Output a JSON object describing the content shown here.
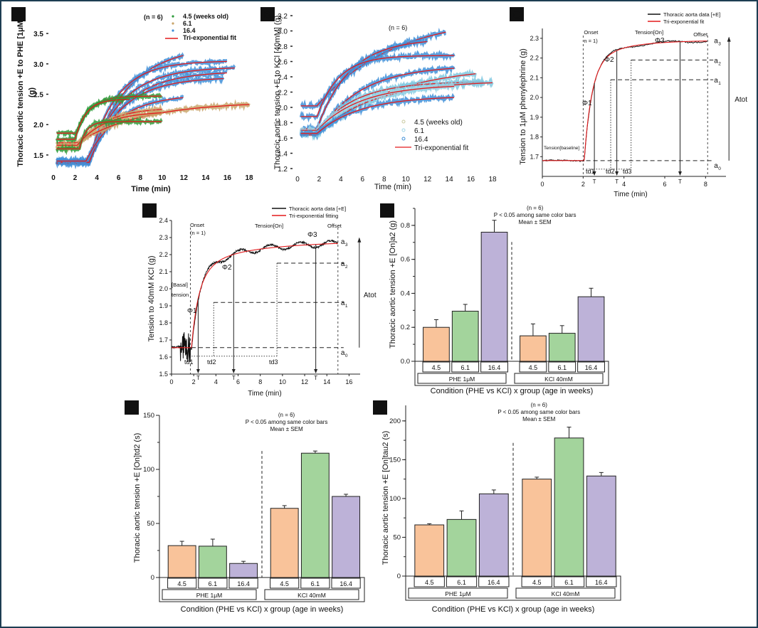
{
  "figure": {
    "border_color": "#1d3d52",
    "bar_colors": {
      "4.5": "#f9c39a",
      "6.1": "#a3d49c",
      "16.4": "#bdb2d8"
    },
    "fit_color": "#e31a1c",
    "data_line_color": "#111111"
  },
  "chart_data": [
    {
      "id": "A",
      "type": "line",
      "panel_label": "A",
      "title": "",
      "xlabel": "Time (min)",
      "ylabel": "Thoracic aortic tension +E to PHE [1μM] (g)",
      "xlim": [
        0,
        18
      ],
      "ylim": [
        1.3,
        3.7
      ],
      "xticks": [
        0,
        2,
        4,
        6,
        8,
        10,
        12,
        14,
        16,
        18
      ],
      "yticks": [
        1.5,
        2.0,
        2.5,
        3.0,
        3.5
      ],
      "annotation": "(n = 6)",
      "legend": {
        "position": "top-right",
        "entries": [
          "4.5 (weeks old)",
          "6.1",
          "16.4",
          "Tri-exponential fit"
        ]
      },
      "series": [
        {
          "group": "16.4",
          "color": "#3f8fd8",
          "t0": 3.3,
          "base": 1.37,
          "plateau": 3.3,
          "tau": 3.5,
          "tend": 12
        },
        {
          "group": "16.4",
          "color": "#3f8fd8",
          "t0": 3.3,
          "base": 1.42,
          "plateau": 3.05,
          "tau": 2.5,
          "tend": 16
        },
        {
          "group": "16.4",
          "color": "#3f8fd8",
          "t0": 3.3,
          "base": 1.4,
          "plateau": 2.95,
          "tau": 3.0,
          "tend": 16.7
        },
        {
          "group": "16.4",
          "color": "#3f8fd8",
          "t0": 3.3,
          "base": 1.36,
          "plateau": 2.88,
          "tau": 3.2,
          "tend": 16
        },
        {
          "group": "16.4",
          "color": "#3f8fd8",
          "t0": 3.3,
          "base": 1.38,
          "plateau": 2.78,
          "tau": 3.0,
          "tend": 15.7
        },
        {
          "group": "16.4",
          "color": "#3f8fd8",
          "t0": 3.0,
          "base": 1.4,
          "plateau": 2.5,
          "tau": 3.0,
          "tend": 12
        },
        {
          "group": "6.1",
          "color": "#c9a56b",
          "t0": 2.2,
          "base": 1.7,
          "plateau": 2.38,
          "tau": 6.0,
          "tend": 18
        },
        {
          "group": "6.1",
          "color": "#c9a56b",
          "t0": 2.2,
          "base": 1.62,
          "plateau": 2.28,
          "tau": 2.5,
          "tend": 10
        },
        {
          "group": "6.1",
          "color": "#c9a56b",
          "t0": 2.2,
          "base": 1.66,
          "plateau": 2.22,
          "tau": 2.5,
          "tend": 10
        },
        {
          "group": "4.5",
          "color": "#2e9b3a",
          "t0": 2.1,
          "base": 1.86,
          "plateau": 2.47,
          "tau": 1.2,
          "tend": 10
        },
        {
          "group": "4.5",
          "color": "#2e9b3a",
          "t0": 2.0,
          "base": 1.76,
          "plateau": 2.42,
          "tau": 1.0,
          "tend": 7
        },
        {
          "group": "4.5",
          "color": "#2e9b3a",
          "t0": 2.4,
          "base": 1.6,
          "plateau": 2.05,
          "tau": 0.6,
          "tend": 10
        }
      ]
    },
    {
      "id": "B",
      "type": "scatter",
      "panel_label": "B",
      "xlabel": "Time (min)",
      "ylabel": "Thoracic aortic tension +E to KCl [40mM] (g)",
      "xlim": [
        0,
        18
      ],
      "ylim": [
        1.2,
        3.2
      ],
      "xticks": [
        0,
        2,
        4,
        6,
        8,
        10,
        12,
        14,
        16,
        18
      ],
      "yticks": [
        1.2,
        1.4,
        1.6,
        1.8,
        2.0,
        2.2,
        2.4,
        2.6,
        2.8,
        3.0,
        3.2
      ],
      "annotation": "(n = 6)",
      "legend": {
        "position": "bottom-right",
        "entries": [
          "4.5 (weeks old)",
          "6.1",
          "16.4",
          "Tri-exponential fit"
        ]
      },
      "series": [
        {
          "group": "16.4",
          "color": "#3f8fd8",
          "t0": 1.8,
          "base": 2.02,
          "plateau": 3.2,
          "tau": 7.0,
          "tend": 13.7
        },
        {
          "group": "16.4",
          "color": "#3f8fd8",
          "t0": 1.8,
          "base": 1.72,
          "plateau": 2.9,
          "tau": 3.0,
          "tend": 12
        },
        {
          "group": "16.4",
          "color": "#3f8fd8",
          "t0": 1.8,
          "base": 1.88,
          "plateau": 2.68,
          "tau": 2.0,
          "tend": 14.5
        },
        {
          "group": "16.4",
          "color": "#3f8fd8",
          "t0": 1.8,
          "base": 1.65,
          "plateau": 2.55,
          "tau": 4.0,
          "tend": 14.5
        },
        {
          "group": "6.1",
          "color": "#7fc8e0",
          "t0": 1.8,
          "base": 1.66,
          "plateau": 2.55,
          "tau": 7.0,
          "tend": 16.5
        },
        {
          "group": "6.1",
          "color": "#7fc8e0",
          "t0": 1.8,
          "base": 1.68,
          "plateau": 2.34,
          "tau": 3.5,
          "tend": 17.2
        },
        {
          "group": "6.1",
          "color": "#7fc8e0",
          "t0": 1.8,
          "base": 1.64,
          "plateau": 2.35,
          "tau": 5.0,
          "tend": 18
        },
        {
          "group": "4.5",
          "color": "#9fd6e6",
          "t0": 1.8,
          "base": 1.7,
          "plateau": 2.3,
          "tau": 4.0,
          "tend": 14.5
        },
        {
          "group": "4.5",
          "color": "#3f8fd8",
          "t0": 1.8,
          "base": 1.66,
          "plateau": 2.15,
          "tau": 4.0,
          "tend": 14.5
        }
      ]
    },
    {
      "id": "C",
      "type": "line",
      "panel_label": "C",
      "xlabel": "Time (min)",
      "ylabel": "Tension to 1μM phenylephrine (g)",
      "xlim": [
        0,
        9
      ],
      "ylim": [
        1.6,
        2.35
      ],
      "xticks": [
        0,
        2,
        4,
        6,
        8
      ],
      "yticks": [
        1.7,
        1.8,
        1.9,
        2.0,
        2.1,
        2.2,
        2.3
      ],
      "legend": {
        "position": "top-right",
        "entries": [
          "Thoracic aorta data [+E]",
          "Tri-exponential fit"
        ]
      },
      "fit": {
        "t0": 2.05,
        "a0": 1.68,
        "a1": 2.09,
        "a2": 2.19,
        "a3": 2.29,
        "tau1": 0.35,
        "tau2": 0.6,
        "tau3": 1.8,
        "tend": 8.1
      },
      "markers": {
        "onset_x": 2.0,
        "offset_x": 8.1,
        "td1_x": 2.15,
        "td2_x": 3.35,
        "td3_x": 4.35,
        "T_x": [
          2.55,
          3.65,
          6.75
        ]
      },
      "annotations": [
        "Onset",
        "n = 1)",
        "Tension[On]",
        "Offset",
        "Tension[baseline]",
        "Φ1",
        "Φ2",
        "Φ3",
        "td1",
        "td2",
        "td3",
        "T",
        "T",
        "T",
        "a0",
        "a1",
        "a2",
        "a3",
        "Atot"
      ]
    },
    {
      "id": "D",
      "type": "line",
      "panel_label": "D",
      "xlabel": "Time (min)",
      "ylabel": "Tension to 40mM KCl (g)",
      "xlim": [
        0,
        17
      ],
      "ylim": [
        1.5,
        2.4
      ],
      "xticks": [
        0,
        2,
        4,
        6,
        8,
        10,
        12,
        14,
        16
      ],
      "yticks": [
        1.5,
        1.6,
        1.7,
        1.8,
        1.9,
        2.0,
        2.1,
        2.2,
        2.3,
        2.4
      ],
      "legend": {
        "position": "top-right",
        "entries": [
          "Thoracic aorta data [+E]",
          "Tri-exponential fitting"
        ]
      },
      "fit": {
        "t0": 1.8,
        "a0": 1.655,
        "a1": 1.92,
        "a2": 2.15,
        "a3": 2.28,
        "tend": 15
      },
      "markers": {
        "onset_x": 1.7,
        "offset_x": 15.0,
        "td1_x": 1.8,
        "td2_x": 3.8,
        "td3_x": 9.5,
        "T_x": [
          2.4,
          5.6,
          13.0
        ]
      },
      "annotations": [
        "Onset",
        "(n = 1)",
        "Tension[On]",
        "Offset",
        "[Basal]",
        "tension",
        "Φ1",
        "Φ2",
        "Φ3",
        "td1",
        "td2",
        "td3",
        "T",
        "T",
        "T",
        "a0",
        "a1",
        "a2",
        "a3",
        "Atot"
      ]
    },
    {
      "id": "E",
      "type": "bar",
      "panel_label": "E",
      "xlabel": "Condition (PHE vs KCl) x group (age in weeks)",
      "ylabel": "Thoracic aortic tension +E [On]a2 (g)",
      "ylim": [
        0,
        0.9
      ],
      "yticks": [
        0.0,
        0.2,
        0.4,
        0.6,
        0.8
      ],
      "ytick_labels": [
        "0.0",
        "0.2",
        "0.4",
        "0.6",
        "0.8"
      ],
      "annotation": [
        "(n = 6)",
        "P < 0.05 among same color bars",
        "Mean ± SEM"
      ],
      "conditions": [
        "PHE 1μM",
        "KCl 40mM"
      ],
      "groups": [
        "4.5",
        "6.1",
        "16.4"
      ],
      "values": [
        [
          0.2,
          0.295,
          0.76
        ],
        [
          0.15,
          0.165,
          0.38
        ]
      ],
      "errors": [
        [
          0.045,
          0.04,
          0.07
        ],
        [
          0.07,
          0.045,
          0.05
        ]
      ]
    },
    {
      "id": "F",
      "type": "bar",
      "panel_label": "F",
      "xlabel": "Condition (PHE vs KCl) x group (age in weeks)",
      "ylabel": "Thoracic aortic tension +E [On]td2 (s)",
      "ylim": [
        0,
        150
      ],
      "yticks": [
        0,
        50,
        100,
        150
      ],
      "ytick_labels": [
        "0",
        "50",
        "100",
        "150"
      ],
      "annotation": [
        "(n = 6)",
        "P < 0.05 among same color bars",
        "Mean ± SEM"
      ],
      "conditions": [
        "PHE 1μM",
        "KCl 40mM"
      ],
      "groups": [
        "4.5",
        "6.1",
        "16.4"
      ],
      "values": [
        [
          29.5,
          29,
          13
        ],
        [
          64,
          115,
          75
        ]
      ],
      "errors": [
        [
          4,
          6.5,
          2
        ],
        [
          2.5,
          2,
          2
        ]
      ]
    },
    {
      "id": "G",
      "type": "bar",
      "panel_label": "G",
      "xlabel": "Condition (PHE vs KCl) x group  (age in weeks)",
      "ylabel": "Thoracic aortic tension +E [On]tau2 (s)",
      "ylim": [
        0,
        220
      ],
      "yticks": [
        0,
        50,
        100,
        150,
        200
      ],
      "ytick_labels": [
        "0",
        "50",
        "100",
        "150",
        "200"
      ],
      "annotation": [
        "(n = 6)",
        "P < 0.05 among same color bars",
        "Mean ± SEM"
      ],
      "conditions": [
        "PHE 1μM",
        "KCl 40mM"
      ],
      "groups": [
        "4.5",
        "6.1",
        "16.4"
      ],
      "values": [
        [
          66,
          73,
          106
        ],
        [
          125,
          178,
          129
        ]
      ],
      "errors": [
        [
          1.5,
          11,
          5
        ],
        [
          2.5,
          14,
          4.5
        ]
      ]
    }
  ]
}
